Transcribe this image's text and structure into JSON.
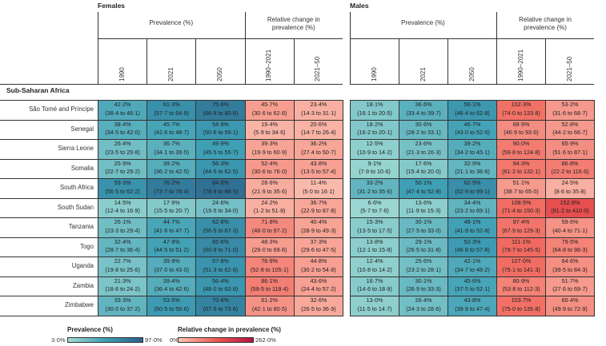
{
  "colors": {
    "prev_low": "#a3dcd4",
    "prev_mid": "#3e9fb5",
    "prev_high": "#2b5f88",
    "chg_low": "#fbc3b3",
    "chg_mid": "#ef5a52",
    "chg_high": "#b8103f"
  },
  "header": {
    "females": "Females",
    "males": "Males",
    "prevalence": "Prevalence (%)",
    "relative_change": "Relative change in prevalence (%)",
    "years": [
      "1990",
      "2021",
      "2050",
      "1990–2021",
      "2021–50"
    ]
  },
  "region": "Sub-Saharan Africa",
  "rows": [
    {
      "country": "São Tomé and Príncipe",
      "females": [
        [
          "42·2%",
          "(38·4 to 46·1)"
        ],
        [
          "61·3%",
          "(57·7 to 64·9)"
        ],
        [
          "75·6%",
          "(68·9 to 80·8)"
        ],
        [
          "45·7%",
          "(30·6 to 62·8)"
        ],
        [
          "23·4%",
          "(14·3 to 31·1)"
        ]
      ],
      "males": [
        [
          "18·1%",
          "(16·1 to 20·5)"
        ],
        [
          "36·6%",
          "(33·4 to 39·7)"
        ],
        [
          "56·1%",
          "(46·4 to 62·8)"
        ],
        [
          "102·3%",
          "(74·0 to 133·8)"
        ],
        [
          "53·2%",
          "(31·6 to 68·7)"
        ]
      ]
    },
    {
      "country": "Senegal",
      "females": [
        [
          "38·4%",
          "(34·5 to 42·0)"
        ],
        [
          "45·7%",
          "(42·6 to 48·7)"
        ],
        [
          "54·9%",
          "(50·6 to 59·1)"
        ],
        [
          "19·4%",
          "(5·9 to 34·6)"
        ],
        [
          "20·6%",
          "(14·7 to 26·4)"
        ]
      ],
      "males": [
        [
          "18·2%",
          "(16·2 to 20·1)"
        ],
        [
          "30·6%",
          "(28·2 to 33·1)"
        ],
        [
          "46·7%",
          "(43·0 to 52·0)"
        ],
        [
          "68·9%",
          "(46·9 to 93·0)"
        ],
        [
          "52·8%",
          "(44·2 to 66·7)"
        ]
      ]
    },
    {
      "country": "Sierra Leone",
      "females": [
        [
          "26·4%",
          "(23·5 to 29·8)"
        ],
        [
          "36·7%",
          "(34·1 to 39·5)"
        ],
        [
          "49·9%",
          "(45·5 to 55·7)"
        ],
        [
          "39·3%",
          "(19·9 to 60·9)"
        ],
        [
          "36·2%",
          "(27·4 to 50·7)"
        ]
      ],
      "males": [
        [
          "12·5%",
          "(10·9 to 14·2)"
        ],
        [
          "23·6%",
          "(21·3 to 26·3)"
        ],
        [
          "39·2%",
          "(34·2 to 45·1)"
        ],
        [
          "90·0%",
          "(59·8 to 124·8)"
        ],
        [
          "65·9%",
          "(51·6 to 87·1)"
        ]
      ]
    },
    {
      "country": "Somalia",
      "females": [
        [
          "25·9%",
          "(22·7 to 29·2)"
        ],
        [
          "39·2%",
          "(36·2 to 42·5)"
        ],
        [
          "56·3%",
          "(44·5 to 62·5)"
        ],
        [
          "52·4%",
          "(30·6 to 76·0)"
        ],
        [
          "43·8%",
          "(13·5 to 57·4)"
        ]
      ],
      "males": [
        [
          "9·1%",
          "(7·9 to 10·6)"
        ],
        [
          "17·6%",
          "(15·4 to 20·0)"
        ],
        [
          "32·9%",
          "(21·1 to 38·6)"
        ],
        [
          "94·3%",
          "(61·2 to 132·1)"
        ],
        [
          "86·8%",
          "(22·2 to 116·6)"
        ]
      ]
    },
    {
      "country": "South Africa",
      "females": [
        [
          "59·3%",
          "(56·5 to 62·2)"
        ],
        [
          "76·2%",
          "(73·7 to 78·4)"
        ],
        [
          "84·8%",
          "(78·9 to 88·5)"
        ],
        [
          "28·6%",
          "(21·9 to 35·6)"
        ],
        [
          "11·4%",
          "(5·0 to 16·1)"
        ]
      ],
      "males": [
        [
          "33·2%",
          "(31·2 to 35·6)"
        ],
        [
          "50·1%",
          "(47·4 to 52·8)"
        ],
        [
          "62·5%",
          "(52·9 to 69·1)"
        ],
        [
          "51·1%",
          "(38·7 to 65·0)"
        ],
        [
          "24·5%",
          "(8·6 to 35·8)"
        ]
      ]
    },
    {
      "country": "South Sudan",
      "females": [
        [
          "14·5%",
          "(12·4 to 16·9)"
        ],
        [
          "17·9%",
          "(15·5 to 20·7)"
        ],
        [
          "24·6%",
          "(19·5 to 34·0)"
        ],
        [
          "24·2%",
          "(1·2 to 51·8)"
        ],
        [
          "36·7%",
          "(22·9 to 87·8)"
        ]
      ],
      "males": [
        [
          "6·6%",
          "(5·7 to 7·6)"
        ],
        [
          "13·6%",
          "(11·9 to 15·3)"
        ],
        [
          "34·4%",
          "(23·2 to 69·1)"
        ],
        [
          "108·5%",
          "(71·4 to 150·3)"
        ],
        [
          "152·8%",
          "(81·2 to 410·0)"
        ]
      ]
    },
    {
      "country": "Tanzania",
      "females": [
        [
          "26·1%",
          "(23·3 to 29·4)"
        ],
        [
          "44·7%",
          "(41·6 to 47·7)"
        ],
        [
          "62·6%",
          "(56·5 to 67·3)"
        ],
        [
          "71·8%",
          "(48·0 to 97·2)"
        ],
        [
          "40·4%",
          "(28·9 to 49·3)"
        ]
      ],
      "males": [
        [
          "15·3%",
          "(13·5 to 17·5)"
        ],
        [
          "30·1%",
          "(27·5 to 33·0)"
        ],
        [
          "48·1%",
          "(41·9 to 52·8)"
        ],
        [
          "97·4%",
          "(67·9 to 129·3)"
        ],
        [
          "59·6%",
          "(40·4 to 71·1)"
        ]
      ]
    },
    {
      "country": "Togo",
      "females": [
        [
          "32·4%",
          "(28·7 to 36·4)"
        ],
        [
          "47·9%",
          "(44·5 to 51·2)"
        ],
        [
          "65·6%",
          "(60·9 to 71·0)"
        ],
        [
          "48·3%",
          "(29·0 to 69·8)"
        ],
        [
          "37·3%",
          "(29·6 to 47·5)"
        ]
      ],
      "males": [
        [
          "13·8%",
          "(12·1 to 15·8)"
        ],
        [
          "29·1%",
          "(26·5 to 31·8)"
        ],
        [
          "52·3%",
          "(46·8 to 57·8)"
        ],
        [
          "111·1%",
          "(79·7 to 145·5)"
        ],
        [
          "79·5%",
          "(64·8 to 98·3)"
        ]
      ]
    },
    {
      "country": "Uganda",
      "females": [
        [
          "22·7%",
          "(19·8 to 25·6)"
        ],
        [
          "39·9%",
          "(37·0 to 43·0)"
        ],
        [
          "57·8%",
          "(51·3 to 62·8)"
        ],
        [
          "76·9%",
          "(52·8 to 105·1)"
        ],
        [
          "44·8%",
          "(30·2 to 54·8)"
        ]
      ],
      "males": [
        [
          "12·4%",
          "(10·8 to 14·2)"
        ],
        [
          "25·6%",
          "(23·2 to 28·1)"
        ],
        [
          "42·1%",
          "(34·7 to 48·2)"
        ],
        [
          "107·0%",
          "(75·1 to 141·3)"
        ],
        [
          "64·6%",
          "(39·5 to 84·3)"
        ]
      ]
    },
    {
      "country": "Zambia",
      "females": [
        [
          "21·3%",
          "(18·6 to 24·2)"
        ],
        [
          "39·4%",
          "(36·4 to 42·6)"
        ],
        [
          "56·4%",
          "(48·0 to 62·8)"
        ],
        [
          "86·1%",
          "(59·5 to 118·4)"
        ],
        [
          "43·6%",
          "(24·4 to 57·2)"
        ]
      ],
      "males": [
        [
          "16·7%",
          "(14·6 to 18·9)"
        ],
        [
          "30·1%",
          "(26·9 to 33·3)"
        ],
        [
          "45·6%",
          "(37·5 to 52·1)"
        ],
        [
          "80·9%",
          "(53·8 to 112·3)"
        ],
        [
          "51·7%",
          "(27·6 to 69·7)"
        ]
      ]
    },
    {
      "country": "Zimbabwe",
      "females": [
        [
          "33·3%",
          "(30·0 to 37·2)"
        ],
        [
          "53·5%",
          "(50·5 to 56·6)"
        ],
        [
          "70·8%",
          "(67·5 to 73·8)"
        ],
        [
          "61·2%",
          "(42·1 to 80·5)"
        ],
        [
          "32·6%",
          "(26·5 to 36·9)"
        ]
      ],
      "males": [
        [
          "13·0%",
          "(11·5 to 14·7)"
        ],
        [
          "26·4%",
          "(24·3 to 28·6)"
        ],
        [
          "43·8%",
          "(39·9 to 47·4)"
        ],
        [
          "103·7%",
          "(75·0 to 135·8)"
        ],
        [
          "65·4%",
          "(49·9 to 72·9)"
        ]
      ]
    }
  ],
  "legend": {
    "prevalence_title": "Prevalence (%)",
    "prevalence_min": "3·0%",
    "prevalence_max": "97·0%",
    "change_title": "Relative change in prevalence (%)",
    "change_min": "0%",
    "change_max": "262·0%"
  },
  "chart_data": {
    "type": "heatmap",
    "title": "",
    "columns": [
      "1990",
      "2021",
      "2050",
      "1990–2021",
      "2021–50"
    ],
    "groups": [
      "Females",
      "Males"
    ],
    "scales": {
      "prevalence": [
        3.0,
        97.0
      ],
      "relative_change": [
        0,
        262.0
      ]
    }
  }
}
